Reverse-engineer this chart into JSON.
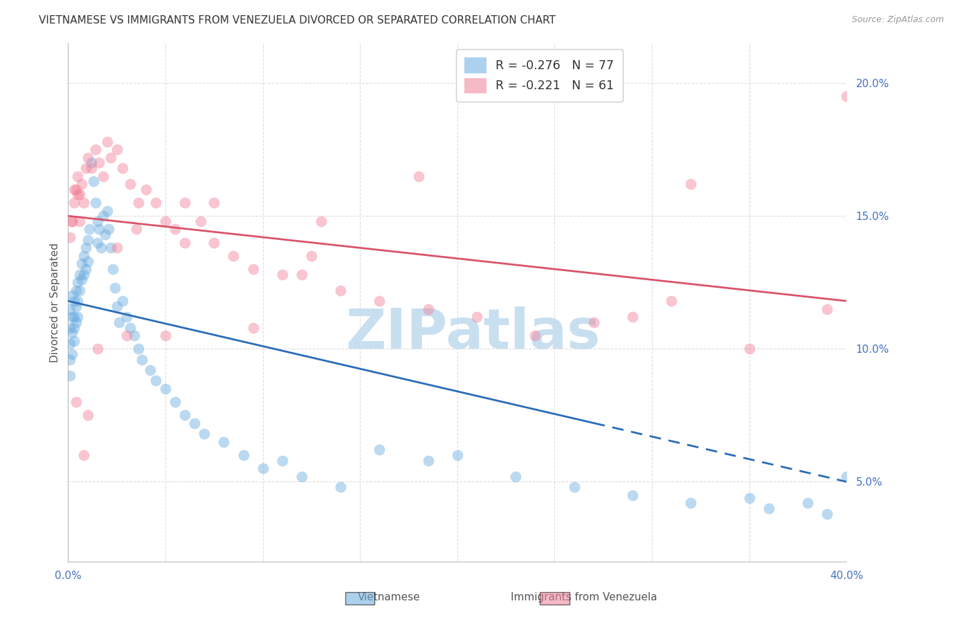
{
  "title": "VIETNAMESE VS IMMIGRANTS FROM VENEZUELA DIVORCED OR SEPARATED CORRELATION CHART",
  "source": "Source: ZipAtlas.com",
  "ylabel": "Divorced or Separated",
  "xlim": [
    0.0,
    0.4
  ],
  "ylim": [
    0.02,
    0.215
  ],
  "yticks": [
    0.05,
    0.1,
    0.15,
    0.2
  ],
  "ytick_labels": [
    "5.0%",
    "10.0%",
    "15.0%",
    "20.0%"
  ],
  "xtick_positions": [
    0.0,
    0.05,
    0.1,
    0.15,
    0.2,
    0.25,
    0.3,
    0.35,
    0.4
  ],
  "xtick_labels": [
    "0.0%",
    "",
    "",
    "",
    "",
    "",
    "",
    "",
    "40.0%"
  ],
  "legend_entry_blue": "R = -0.276   N = 77",
  "legend_entry_pink": "R = -0.221   N = 61",
  "blue_color": "#6AABDF",
  "pink_color": "#F08098",
  "blue_trend_color": "#2B6CB8",
  "pink_trend_color": "#D9546A",
  "blue_scatter_x": [
    0.001,
    0.001,
    0.001,
    0.001,
    0.001,
    0.002,
    0.002,
    0.002,
    0.002,
    0.003,
    0.003,
    0.003,
    0.003,
    0.004,
    0.004,
    0.004,
    0.005,
    0.005,
    0.005,
    0.006,
    0.006,
    0.007,
    0.007,
    0.008,
    0.008,
    0.009,
    0.009,
    0.01,
    0.01,
    0.011,
    0.012,
    0.013,
    0.014,
    0.015,
    0.015,
    0.016,
    0.017,
    0.018,
    0.019,
    0.02,
    0.021,
    0.022,
    0.023,
    0.024,
    0.025,
    0.026,
    0.028,
    0.03,
    0.032,
    0.034,
    0.036,
    0.038,
    0.042,
    0.045,
    0.05,
    0.055,
    0.06,
    0.065,
    0.07,
    0.08,
    0.09,
    0.1,
    0.11,
    0.12,
    0.14,
    0.16,
    0.185,
    0.2,
    0.23,
    0.26,
    0.29,
    0.32,
    0.36,
    0.39,
    0.4,
    0.38,
    0.35
  ],
  "blue_scatter_y": [
    0.115,
    0.108,
    0.102,
    0.096,
    0.09,
    0.12,
    0.112,
    0.106,
    0.098,
    0.118,
    0.112,
    0.108,
    0.103,
    0.122,
    0.116,
    0.11,
    0.125,
    0.118,
    0.112,
    0.128,
    0.122,
    0.132,
    0.126,
    0.135,
    0.128,
    0.138,
    0.13,
    0.141,
    0.133,
    0.145,
    0.17,
    0.163,
    0.155,
    0.148,
    0.14,
    0.145,
    0.138,
    0.15,
    0.143,
    0.152,
    0.145,
    0.138,
    0.13,
    0.123,
    0.116,
    0.11,
    0.118,
    0.112,
    0.108,
    0.105,
    0.1,
    0.096,
    0.092,
    0.088,
    0.085,
    0.08,
    0.075,
    0.072,
    0.068,
    0.065,
    0.06,
    0.055,
    0.058,
    0.052,
    0.048,
    0.062,
    0.058,
    0.06,
    0.052,
    0.048,
    0.045,
    0.042,
    0.04,
    0.038,
    0.052,
    0.042,
    0.044
  ],
  "pink_scatter_x": [
    0.001,
    0.002,
    0.003,
    0.004,
    0.005,
    0.006,
    0.007,
    0.008,
    0.009,
    0.01,
    0.012,
    0.014,
    0.016,
    0.018,
    0.02,
    0.022,
    0.025,
    0.028,
    0.032,
    0.036,
    0.04,
    0.045,
    0.05,
    0.055,
    0.06,
    0.068,
    0.075,
    0.085,
    0.095,
    0.11,
    0.125,
    0.14,
    0.16,
    0.185,
    0.21,
    0.24,
    0.27,
    0.31,
    0.35,
    0.39,
    0.4,
    0.29,
    0.32,
    0.18,
    0.13,
    0.095,
    0.075,
    0.05,
    0.035,
    0.025,
    0.015,
    0.01,
    0.008,
    0.006,
    0.004,
    0.002,
    0.003,
    0.005,
    0.03,
    0.06,
    0.12
  ],
  "pink_scatter_y": [
    0.142,
    0.148,
    0.155,
    0.16,
    0.165,
    0.158,
    0.162,
    0.155,
    0.168,
    0.172,
    0.168,
    0.175,
    0.17,
    0.165,
    0.178,
    0.172,
    0.175,
    0.168,
    0.162,
    0.155,
    0.16,
    0.155,
    0.148,
    0.145,
    0.14,
    0.148,
    0.14,
    0.135,
    0.13,
    0.128,
    0.135,
    0.122,
    0.118,
    0.115,
    0.112,
    0.105,
    0.11,
    0.118,
    0.1,
    0.115,
    0.195,
    0.112,
    0.162,
    0.165,
    0.148,
    0.108,
    0.155,
    0.105,
    0.145,
    0.138,
    0.1,
    0.075,
    0.06,
    0.148,
    0.08,
    0.148,
    0.16,
    0.158,
    0.105,
    0.155,
    0.128
  ],
  "blue_trend_x0": 0.0,
  "blue_trend_y0": 0.118,
  "blue_trend_x1": 0.4,
  "blue_trend_y1": 0.05,
  "blue_trend_solid_end": 0.27,
  "pink_trend_x0": 0.0,
  "pink_trend_y0": 0.15,
  "pink_trend_x1": 0.4,
  "pink_trend_y1": 0.118,
  "watermark": "ZIPatlas",
  "watermark_color": "#C8DFF0",
  "background_color": "#FFFFFF",
  "grid_color": "#DDDDDD",
  "tick_color": "#4472C4",
  "title_fontsize": 11,
  "label_fontsize": 11,
  "tick_fontsize": 11,
  "source_fontsize": 9
}
